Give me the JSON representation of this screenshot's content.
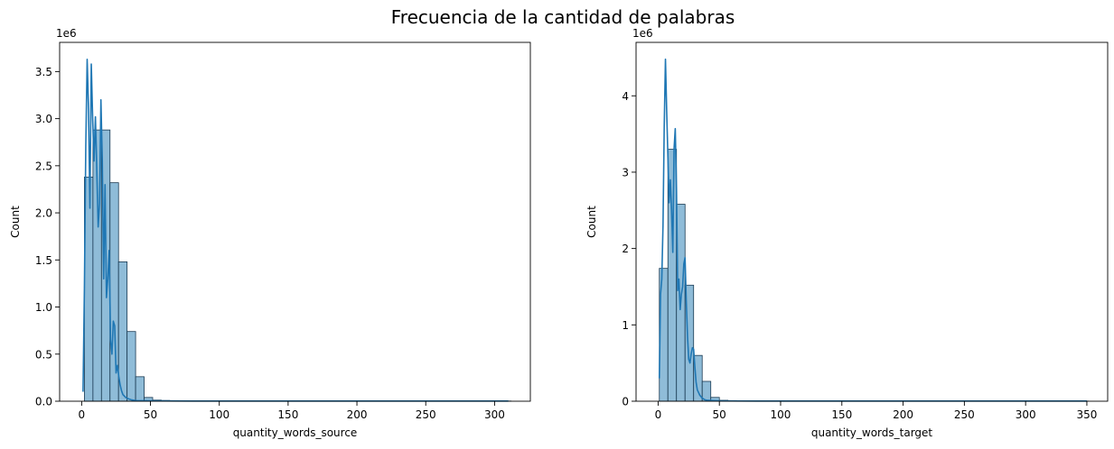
{
  "figure": {
    "suptitle": "Frecuencia de la cantidad de palabras"
  },
  "chart_data": [
    {
      "type": "histogram",
      "xlabel": "quantity_words_source",
      "ylabel": "Count",
      "y_scale_label": "1e6",
      "xlim": [
        -16,
        326
      ],
      "ylim": [
        0,
        3.81
      ],
      "xticks": [
        0,
        50,
        100,
        150,
        200,
        250,
        300
      ],
      "yticks": [
        0.0,
        0.5,
        1.0,
        1.5,
        2.0,
        2.5,
        3.0,
        3.5
      ],
      "ytick_labels": [
        "0.0",
        "0.5",
        "1.0",
        "1.5",
        "2.0",
        "2.5",
        "3.0",
        "3.5"
      ],
      "bar_fill": "#8fbcd8",
      "bar_edge": "#1a3a52",
      "kde_color": "#1f77b4",
      "bins_start": 2,
      "bin_width": 6.2,
      "bar_values": [
        2.38,
        2.88,
        2.88,
        2.32,
        1.48,
        0.74,
        0.26,
        0.04,
        0.012,
        0.008,
        0.006,
        0.005,
        0.004,
        0.004,
        0.003,
        0.003,
        0.003,
        0.002,
        0.002,
        0.002,
        0.002,
        0.002,
        0.002,
        0.002,
        0.002,
        0.002,
        0.002,
        0.002,
        0.002,
        0.002,
        0.002,
        0.002,
        0.002,
        0.002,
        0.002,
        0.002,
        0.002,
        0.002,
        0.002,
        0.002,
        0.002,
        0.002,
        0.002,
        0.002,
        0.002,
        0.002,
        0.002,
        0.002,
        0.002,
        0.002
      ],
      "kde": {
        "x": [
          1,
          2,
          3,
          4,
          5,
          6,
          7,
          8,
          9,
          10,
          11,
          12,
          13,
          14,
          15,
          16,
          17,
          18,
          19,
          20,
          21,
          22,
          23,
          24,
          25,
          26,
          27,
          28,
          29,
          30,
          32,
          34,
          36,
          38,
          40,
          45,
          50,
          60,
          80,
          100,
          150,
          200,
          250,
          300,
          310
        ],
        "y": [
          0.1,
          1.2,
          2.7,
          3.63,
          3.1,
          2.05,
          3.58,
          3.0,
          2.55,
          3.02,
          2.45,
          1.85,
          2.1,
          3.2,
          2.55,
          1.3,
          2.3,
          1.1,
          1.3,
          1.6,
          0.65,
          0.5,
          0.85,
          0.8,
          0.3,
          0.38,
          0.26,
          0.17,
          0.11,
          0.07,
          0.04,
          0.025,
          0.015,
          0.01,
          0.007,
          0.005,
          0.004,
          0.003,
          0.002,
          0.002,
          0.002,
          0.002,
          0.002,
          0.002,
          0.002
        ]
      }
    },
    {
      "type": "histogram",
      "xlabel": "quantity_words_target",
      "ylabel": "Count",
      "y_scale_label": "1e6",
      "xlim": [
        -18,
        367
      ],
      "ylim": [
        0,
        4.7
      ],
      "xticks": [
        0,
        50,
        100,
        150,
        200,
        250,
        300,
        350
      ],
      "yticks": [
        0,
        1,
        2,
        3,
        4
      ],
      "ytick_labels": [
        "0",
        "1",
        "2",
        "3",
        "4"
      ],
      "bar_fill": "#8fbcd8",
      "bar_edge": "#1a3a52",
      "kde_color": "#1f77b4",
      "bins_start": 1,
      "bin_width": 7,
      "bar_values": [
        1.74,
        3.3,
        2.58,
        1.52,
        0.6,
        0.26,
        0.05,
        0.012,
        0.008,
        0.006,
        0.005,
        0.004,
        0.004,
        0.003,
        0.003,
        0.003,
        0.002,
        0.002,
        0.002,
        0.002,
        0.002,
        0.002,
        0.002,
        0.002,
        0.002,
        0.002,
        0.002,
        0.002,
        0.002,
        0.002,
        0.002,
        0.002,
        0.002,
        0.002,
        0.002,
        0.002,
        0.002,
        0.002,
        0.002,
        0.002,
        0.002,
        0.002,
        0.002,
        0.002,
        0.002,
        0.002,
        0.002,
        0.002,
        0.002,
        0.002
      ],
      "kde": {
        "x": [
          1,
          2,
          3,
          4,
          5,
          6,
          7,
          8,
          9,
          10,
          11,
          12,
          13,
          14,
          15,
          16,
          17,
          18,
          19,
          20,
          21,
          22,
          23,
          24,
          25,
          26,
          27,
          28,
          29,
          30,
          31,
          32,
          34,
          36,
          38,
          40,
          45,
          50,
          60,
          80,
          100,
          150,
          200,
          250,
          300,
          350
        ],
        "y": [
          0.3,
          1.4,
          1.6,
          2.3,
          3.6,
          4.48,
          3.8,
          3.2,
          2.6,
          2.9,
          2.5,
          1.95,
          3.3,
          3.57,
          2.8,
          1.45,
          1.6,
          1.2,
          1.4,
          1.5,
          1.8,
          1.88,
          1.3,
          0.85,
          0.55,
          0.5,
          0.62,
          0.7,
          0.68,
          0.45,
          0.25,
          0.15,
          0.08,
          0.04,
          0.02,
          0.012,
          0.008,
          0.005,
          0.003,
          0.002,
          0.002,
          0.002,
          0.002,
          0.002,
          0.002,
          0.002
        ]
      }
    }
  ]
}
